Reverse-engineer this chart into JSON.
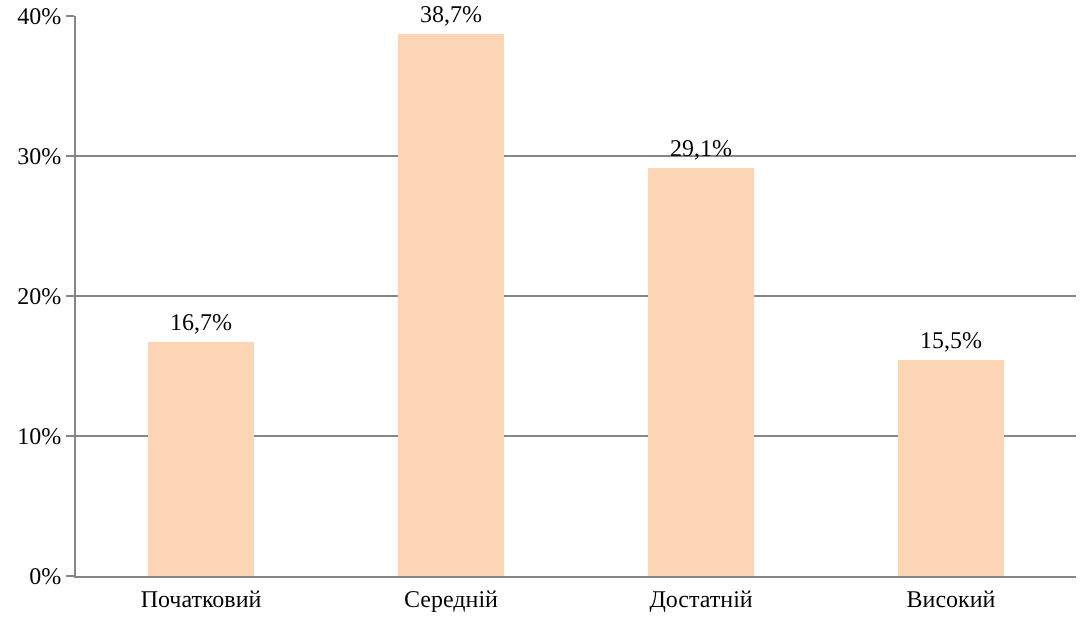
{
  "chart_data": {
    "type": "bar",
    "categories": [
      "Початковий",
      "Середній",
      "Достатній",
      "Високий"
    ],
    "values": [
      16.7,
      38.7,
      29.1,
      15.5
    ],
    "value_labels": [
      "16,7%",
      "38,7%",
      "29,1%",
      "15,5%"
    ],
    "color": "#fcd5b4",
    "ylim": [
      0,
      40
    ],
    "yticks": [
      {
        "value": 0,
        "label": "0%"
      },
      {
        "value": 10,
        "label": "10%"
      },
      {
        "value": 20,
        "label": "20%"
      },
      {
        "value": 30,
        "label": "30%"
      },
      {
        "value": 40,
        "label": "40%"
      }
    ],
    "grid": "y"
  }
}
